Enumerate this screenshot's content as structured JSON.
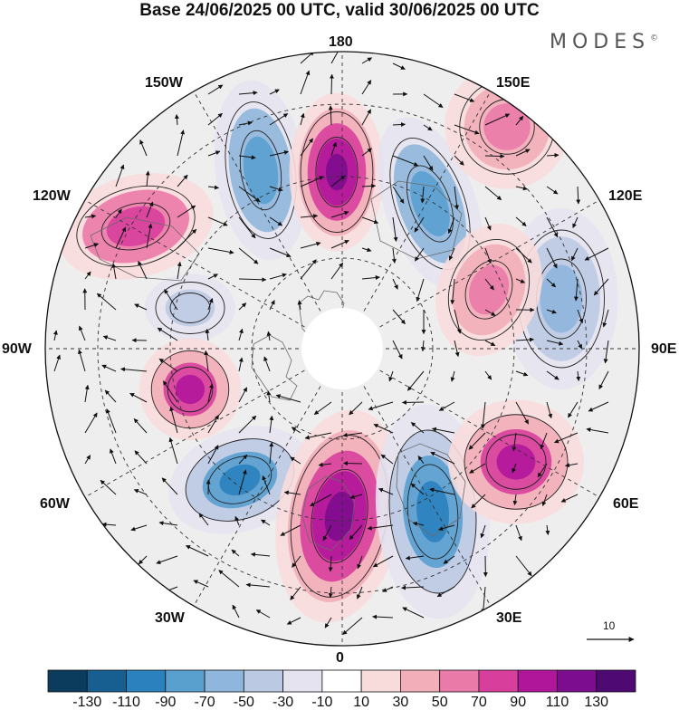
{
  "title": "Base 24/06/2025 00 UTC, valid 30/06/2025 00 UTC",
  "brand": "MODES",
  "brand_mark": "©",
  "longitude_labels": {
    "top": "180",
    "bottom": "0",
    "left": "90W",
    "right": "90E",
    "upper_left_1": "150W",
    "upper_left_2": "120W",
    "upper_right_1": "150E",
    "upper_right_2": "120E",
    "lower_left_1": "60W",
    "lower_left_2": "30W",
    "lower_right_1": "60E",
    "lower_right_2": "30E"
  },
  "reference_vector_label": "10",
  "colorbar": {
    "labels": [
      "-130",
      "-110",
      "-90",
      "-70",
      "-50",
      "-30",
      "-10",
      "10",
      "30",
      "50",
      "70",
      "90",
      "110",
      "130"
    ],
    "colors": [
      "#0b3c5d",
      "#175f90",
      "#2a81bd",
      "#5aa0cf",
      "#8fb6dc",
      "#bcc9e3",
      "#e4e3ef",
      "#ffffff",
      "#f8dcdc",
      "#f2aeb9",
      "#ea7aa7",
      "#d83f9c",
      "#b0169a",
      "#7c0d8e",
      "#4e0a72"
    ]
  },
  "anomaly_centers": [
    {
      "name": "low-north-pacific-west",
      "sign": "negative",
      "magnitude": 70
    },
    {
      "name": "high-bering",
      "sign": "positive",
      "magnitude": 110
    },
    {
      "name": "low-east-siberia",
      "sign": "negative",
      "magnitude": 70
    },
    {
      "name": "high-north-pacific-east",
      "sign": "positive",
      "magnitude": 50
    },
    {
      "name": "high-alaska-canada",
      "sign": "positive",
      "magnitude": 70
    },
    {
      "name": "low-north-canada",
      "sign": "negative",
      "magnitude": 30
    },
    {
      "name": "high-hudson-bay",
      "sign": "positive",
      "magnitude": 90
    },
    {
      "name": "low-north-atlantic",
      "sign": "negative",
      "magnitude": 90
    },
    {
      "name": "high-western-europe",
      "sign": "positive",
      "magnitude": 110
    },
    {
      "name": "low-scandinavia-russia",
      "sign": "negative",
      "magnitude": 90
    },
    {
      "name": "high-west-siberia",
      "sign": "positive",
      "magnitude": 90
    },
    {
      "name": "low-central-siberia",
      "sign": "negative",
      "magnitude": 50
    },
    {
      "name": "high-siberia-north",
      "sign": "positive",
      "magnitude": 50
    }
  ]
}
